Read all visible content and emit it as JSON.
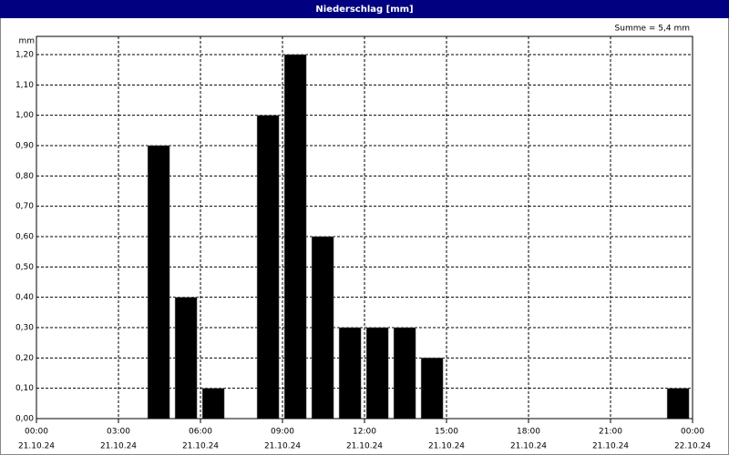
{
  "chart_data": {
    "type": "bar",
    "title": "Niederschlag [mm]",
    "y_unit": "mm",
    "annotation": "Summe = 5,4 mm",
    "x": [
      4,
      5,
      6,
      8,
      9,
      10,
      11,
      12,
      13,
      14,
      23
    ],
    "values": [
      0.9,
      0.4,
      0.1,
      1.0,
      1.2,
      0.6,
      0.3,
      0.3,
      0.3,
      0.2,
      0.1
    ],
    "color": "#000000",
    "xlim": [
      0,
      24
    ],
    "xticks": [
      {
        "value": 0,
        "label": "00:00",
        "date": "21.10.24"
      },
      {
        "value": 3,
        "label": "03:00",
        "date": "21.10.24"
      },
      {
        "value": 6,
        "label": "06:00",
        "date": "21.10.24"
      },
      {
        "value": 9,
        "label": "09:00",
        "date": "21.10.24"
      },
      {
        "value": 12,
        "label": "12:00",
        "date": "21.10.24"
      },
      {
        "value": 15,
        "label": "15:00",
        "date": "21.10.24"
      },
      {
        "value": 18,
        "label": "18:00",
        "date": "21.10.24"
      },
      {
        "value": 21,
        "label": "21:00",
        "date": "21.10.24"
      },
      {
        "value": 24,
        "label": "00:00",
        "date": "22.10.24"
      }
    ],
    "ylim": [
      0,
      1.26
    ],
    "yticks": [
      {
        "value": 0,
        "label": "0,00"
      },
      {
        "value": 0.1,
        "label": "0,10"
      },
      {
        "value": 0.2,
        "label": "0,20"
      },
      {
        "value": 0.3,
        "label": "0,30"
      },
      {
        "value": 0.4,
        "label": "0,40"
      },
      {
        "value": 0.5,
        "label": "0,50"
      },
      {
        "value": 0.6,
        "label": "0,60"
      },
      {
        "value": 0.7,
        "label": "0,70"
      },
      {
        "value": 0.8,
        "label": "0,80"
      },
      {
        "value": 0.9,
        "label": "0,90"
      },
      {
        "value": 1.0,
        "label": "1,00"
      },
      {
        "value": 1.1,
        "label": "1,10"
      },
      {
        "value": 1.2,
        "label": "1,20"
      }
    ],
    "grid": true
  }
}
